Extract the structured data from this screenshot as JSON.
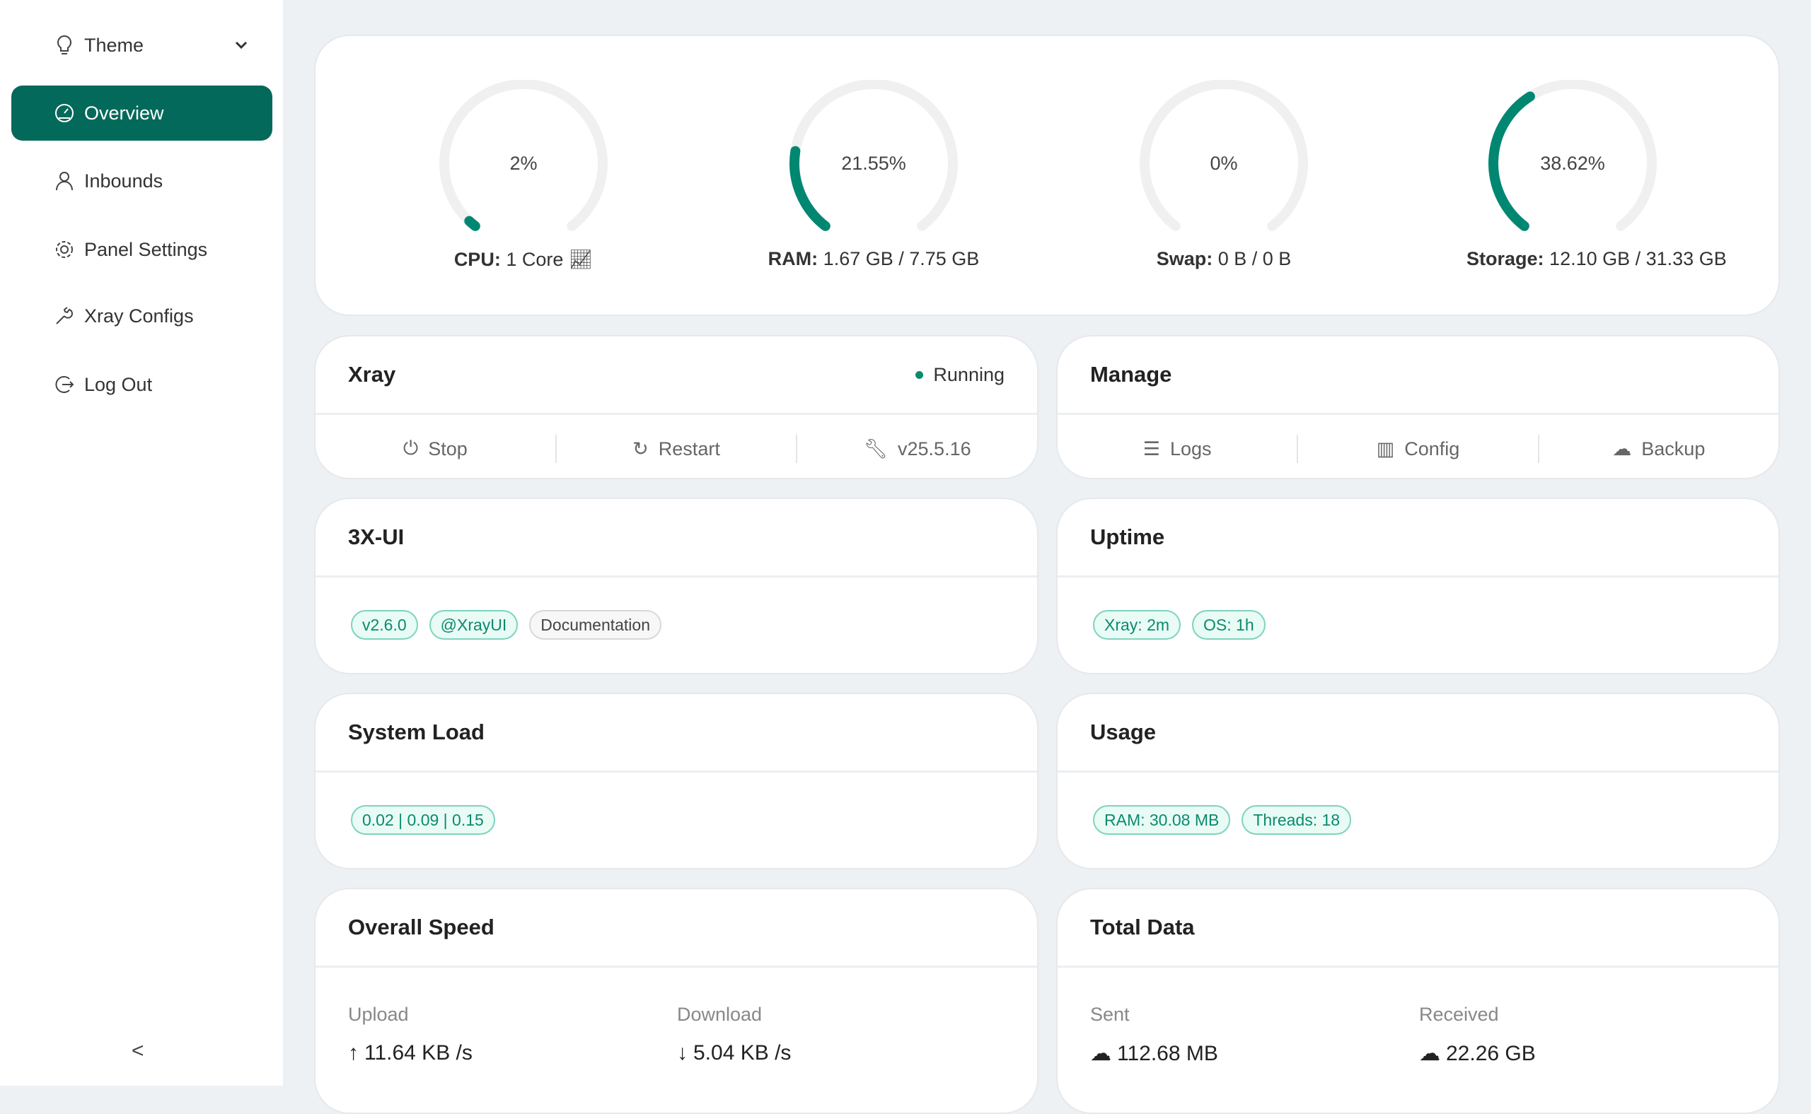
{
  "sidebar": {
    "items": [
      {
        "label": "Theme",
        "icon": "bulb-icon"
      },
      {
        "label": "Overview",
        "icon": "dashboard-icon",
        "active": true
      },
      {
        "label": "Inbounds",
        "icon": "user-icon"
      },
      {
        "label": "Panel Settings",
        "icon": "gear-icon"
      },
      {
        "label": "Xray Configs",
        "icon": "wrench-icon"
      },
      {
        "label": "Log Out",
        "icon": "logout-icon"
      }
    ],
    "collapse": "<"
  },
  "colors": {
    "accent": "#008771",
    "track": "#f0f0f0",
    "active_nav": "#03695a"
  },
  "gauges": [
    {
      "percent": 2,
      "text": "2%",
      "key": "CPU:",
      "value": "1 Core"
    },
    {
      "percent": 21.55,
      "text": "21.55%",
      "key": "RAM:",
      "value": "1.67 GB / 7.75 GB"
    },
    {
      "percent": 0,
      "text": "0%",
      "key": "Swap:",
      "value": "0 B / 0 B"
    },
    {
      "percent": 38.62,
      "text": "38.62%",
      "key": "Storage:",
      "value": "12.10 GB / 31.33 GB"
    }
  ],
  "xray": {
    "title": "Xray",
    "status": "Running",
    "actions": [
      "Stop",
      "Restart",
      "v25.5.16"
    ]
  },
  "manage": {
    "title": "Manage",
    "actions": [
      "Logs",
      "Config",
      "Backup"
    ]
  },
  "app": {
    "title": "3X-UI",
    "tags": [
      "v2.6.0",
      "@XrayUI",
      "Documentation"
    ]
  },
  "uptime": {
    "title": "Uptime",
    "tags": [
      "Xray: 2m",
      "OS: 1h"
    ]
  },
  "load": {
    "title": "System Load",
    "tags": [
      "0.02 | 0.09 | 0.15"
    ]
  },
  "usage": {
    "title": "Usage",
    "tags": [
      "RAM: 30.08 MB",
      "Threads: 18"
    ]
  },
  "speed": {
    "title": "Overall Speed",
    "upload_label": "Upload",
    "upload": "11.64 KB /s",
    "download_label": "Download",
    "download": "5.04 KB /s"
  },
  "total": {
    "title": "Total Data",
    "sent_label": "Sent",
    "sent": "112.68 MB",
    "received_label": "Received",
    "received": "22.26 GB"
  }
}
